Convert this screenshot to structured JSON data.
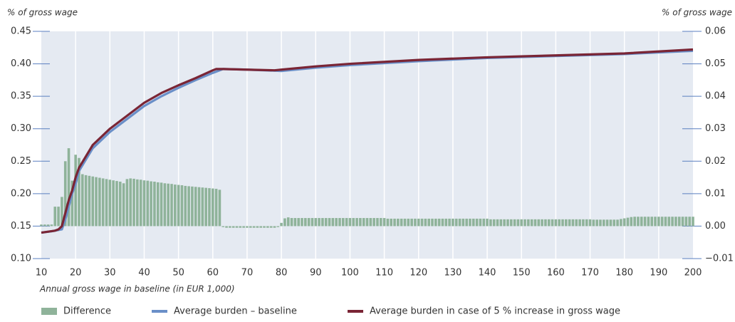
{
  "chart_data": {
    "type": "combo",
    "y_label": "% of gross wage",
    "y2_label": "% of gross wage",
    "x_label": "Annual gross wage in baseline (in EUR 1,000)",
    "xlim": [
      10,
      200
    ],
    "xticks": [
      10,
      20,
      30,
      40,
      50,
      60,
      70,
      80,
      90,
      100,
      110,
      120,
      130,
      140,
      150,
      160,
      170,
      180,
      190,
      200
    ],
    "ylim": [
      0.1,
      0.45
    ],
    "yticks": [
      {
        "value": 0.1,
        "label": "0.10"
      },
      0.15,
      {
        "value": 0.2,
        "label": "0.20"
      },
      0.25,
      {
        "value": 0.3,
        "label": "0.30"
      },
      0.35,
      {
        "value": 0.4,
        "label": "0.40"
      },
      0.45
    ],
    "y2lim": [
      -0.01,
      0.06
    ],
    "y2ticks": [
      {
        "value": -0.01,
        "label": "−0.01"
      },
      {
        "value": 0,
        "label": "0.00"
      },
      0.01,
      0.02,
      0.03,
      0.04,
      0.05,
      0.06
    ],
    "grid": true,
    "series": [
      {
        "name": "Difference",
        "type": "bar",
        "axis": "y2",
        "color": "#8fb39a",
        "x": [
          10,
          11,
          12,
          13,
          14,
          15,
          16,
          17,
          18,
          19,
          20,
          21,
          22,
          23,
          24,
          25,
          26,
          27,
          28,
          29,
          30,
          31,
          32,
          33,
          34,
          35,
          36,
          37,
          38,
          39,
          40,
          41,
          42,
          43,
          44,
          45,
          46,
          47,
          48,
          49,
          50,
          51,
          52,
          53,
          54,
          55,
          56,
          57,
          58,
          59,
          60,
          61,
          62,
          63,
          64,
          65,
          66,
          67,
          68,
          69,
          70,
          71,
          72,
          73,
          74,
          75,
          76,
          77,
          78,
          79,
          80,
          81,
          82,
          83,
          84,
          85,
          86,
          87,
          88,
          89,
          90,
          91,
          92,
          93,
          94,
          95,
          96,
          97,
          98,
          99,
          100,
          101,
          102,
          103,
          104,
          105,
          106,
          107,
          108,
          109,
          110,
          111,
          112,
          113,
          114,
          115,
          116,
          117,
          118,
          119,
          120,
          121,
          122,
          123,
          124,
          125,
          126,
          127,
          128,
          129,
          130,
          131,
          132,
          133,
          134,
          135,
          136,
          137,
          138,
          139,
          140,
          141,
          142,
          143,
          144,
          145,
          146,
          147,
          148,
          149,
          150,
          151,
          152,
          153,
          154,
          155,
          156,
          157,
          158,
          159,
          160,
          161,
          162,
          163,
          164,
          165,
          166,
          167,
          168,
          169,
          170,
          171,
          172,
          173,
          174,
          175,
          176,
          177,
          178,
          179,
          180,
          181,
          182,
          183,
          184,
          185,
          186,
          187,
          188,
          189,
          190,
          191,
          192,
          193,
          194,
          195,
          196,
          197,
          198,
          199,
          200
        ],
        "values": [
          0.0005,
          0.0005,
          0.0005,
          0.0005,
          0.006,
          0.006,
          0.009,
          0.02,
          0.024,
          0.014,
          0.022,
          0.021,
          0.016,
          0.0157,
          0.0155,
          0.0153,
          0.0151,
          0.0149,
          0.0147,
          0.0145,
          0.0143,
          0.0141,
          0.0139,
          0.0137,
          0.0132,
          0.0145,
          0.0147,
          0.0146,
          0.0144,
          0.0143,
          0.0141,
          0.014,
          0.0138,
          0.0137,
          0.0135,
          0.0134,
          0.0132,
          0.0131,
          0.013,
          0.0128,
          0.0127,
          0.0126,
          0.0124,
          0.0123,
          0.0122,
          0.0121,
          0.012,
          0.0119,
          0.0118,
          0.0117,
          0.0116,
          0.0115,
          0.0112,
          -0.0003,
          -0.0005,
          -0.0005,
          -0.0005,
          -0.0005,
          -0.0005,
          -0.0005,
          -0.0005,
          -0.0005,
          -0.0005,
          -0.0005,
          -0.0005,
          -0.0005,
          -0.0005,
          -0.0005,
          -0.0005,
          -0.0003,
          0.001,
          0.0024,
          0.0027,
          0.0025,
          0.0025,
          0.0025,
          0.0025,
          0.0025,
          0.0025,
          0.0025,
          0.0025,
          0.0025,
          0.0025,
          0.0025,
          0.0025,
          0.0025,
          0.0025,
          0.0025,
          0.0025,
          0.0025,
          0.0025,
          0.0025,
          0.0025,
          0.0025,
          0.0025,
          0.0025,
          0.0025,
          0.0025,
          0.0025,
          0.0025,
          0.0025,
          0.0023,
          0.0023,
          0.0023,
          0.0023,
          0.0023,
          0.0023,
          0.0023,
          0.0023,
          0.0023,
          0.0023,
          0.0023,
          0.0023,
          0.0023,
          0.0023,
          0.0023,
          0.0023,
          0.0023,
          0.0023,
          0.0023,
          0.0023,
          0.0023,
          0.0023,
          0.0023,
          0.0023,
          0.0023,
          0.0023,
          0.0023,
          0.0023,
          0.0023,
          0.0023,
          0.0021,
          0.0021,
          0.0021,
          0.0021,
          0.0021,
          0.0021,
          0.0021,
          0.0021,
          0.0021,
          0.0021,
          0.0021,
          0.0021,
          0.0021,
          0.0021,
          0.0021,
          0.0021,
          0.0021,
          0.0021,
          0.0021,
          0.0021,
          0.0021,
          0.0021,
          0.0021,
          0.0021,
          0.0021,
          0.0021,
          0.0021,
          0.0021,
          0.0021,
          0.0021,
          0.002,
          0.002,
          0.002,
          0.002,
          0.002,
          0.002,
          0.002,
          0.002,
          0.0022,
          0.0024,
          0.0026,
          0.0028,
          0.0029,
          0.0029,
          0.0029,
          0.0029,
          0.0029,
          0.0029,
          0.0029,
          0.0029,
          0.0029,
          0.0029,
          0.0029,
          0.0029,
          0.0029,
          0.0029,
          0.0029,
          0.0029,
          0.0029,
          0.0029
        ]
      },
      {
        "name": "Average burden – baseline",
        "type": "line",
        "color": "#6a8fc8",
        "x": [
          10,
          13,
          16,
          17,
          18,
          19,
          20,
          21,
          25,
          30,
          35,
          40,
          45,
          50,
          55,
          60,
          63,
          70,
          80,
          90,
          100,
          120,
          140,
          160,
          180,
          200
        ],
        "values": [
          0.14,
          0.142,
          0.145,
          0.16,
          0.18,
          0.2,
          0.215,
          0.235,
          0.27,
          0.295,
          0.315,
          0.335,
          0.35,
          0.363,
          0.375,
          0.386,
          0.392,
          0.391,
          0.389,
          0.394,
          0.398,
          0.404,
          0.409,
          0.412,
          0.415,
          0.42
        ]
      },
      {
        "name": "Average burden in case of 5 % increase in gross wage",
        "type": "line",
        "color": "#7a2535",
        "x": [
          10,
          14,
          15,
          16,
          17,
          18,
          19,
          20,
          21,
          25,
          30,
          35,
          40,
          45,
          50,
          55,
          60,
          61,
          63,
          70,
          78,
          80,
          90,
          100,
          120,
          140,
          160,
          180,
          200
        ],
        "values": [
          0.14,
          0.143,
          0.145,
          0.15,
          0.17,
          0.19,
          0.205,
          0.225,
          0.24,
          0.275,
          0.3,
          0.32,
          0.34,
          0.355,
          0.367,
          0.378,
          0.39,
          0.392,
          0.392,
          0.391,
          0.39,
          0.391,
          0.396,
          0.4,
          0.406,
          0.41,
          0.413,
          0.416,
          0.422
        ]
      }
    ]
  }
}
